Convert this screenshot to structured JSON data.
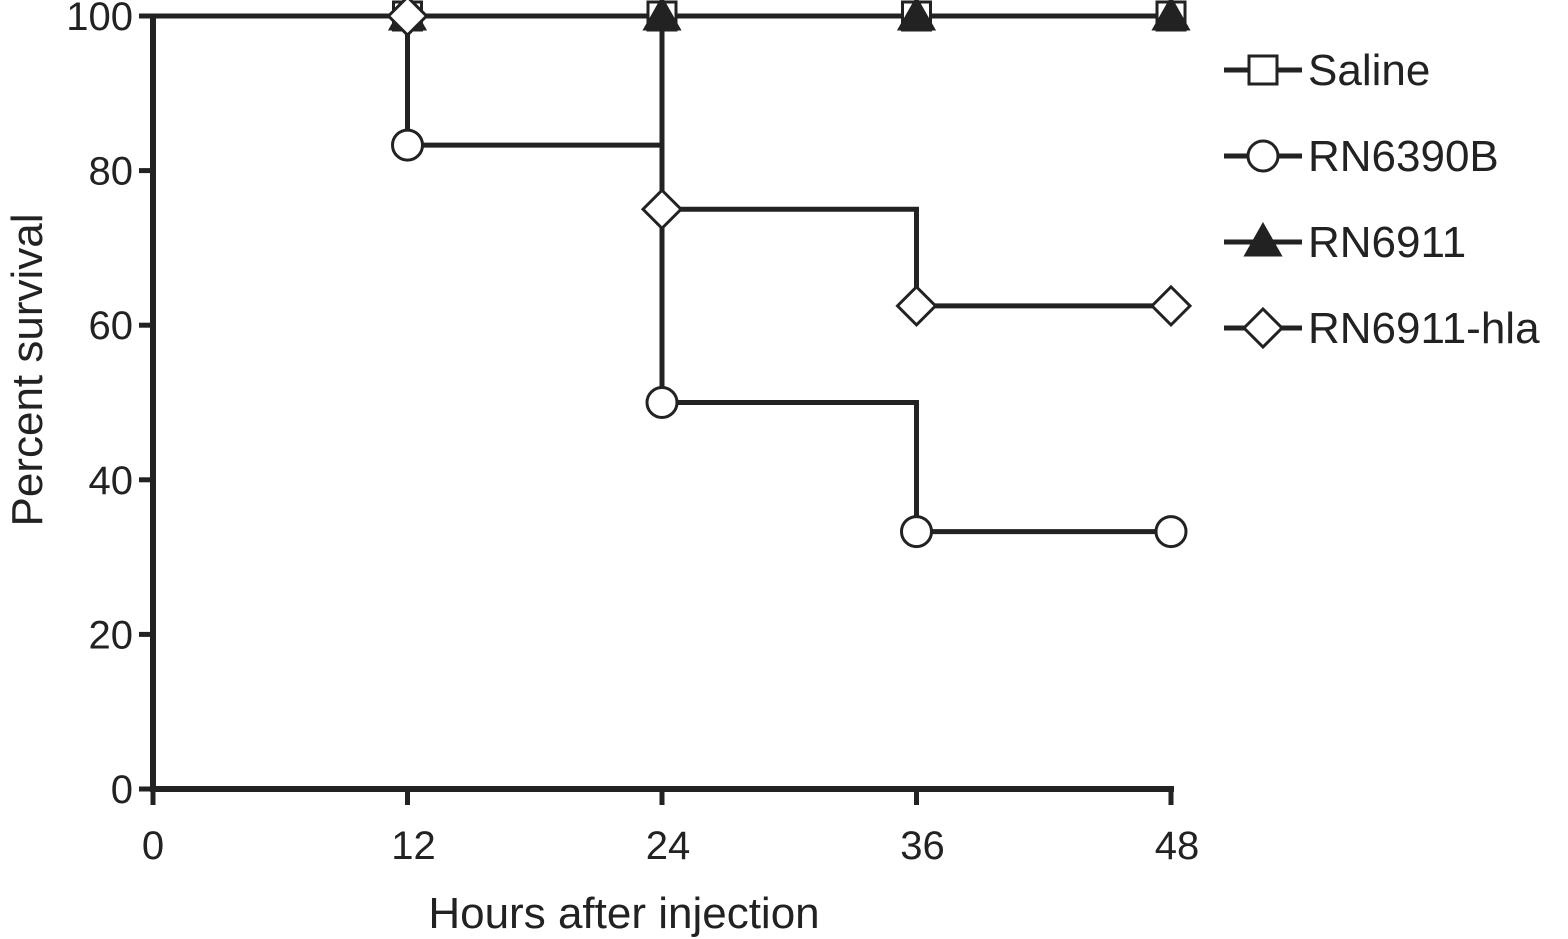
{
  "chart_data": {
    "type": "line",
    "step": true,
    "xlabel": "Hours after injection",
    "ylabel": "Percent survival",
    "xlim": [
      0,
      48
    ],
    "ylim": [
      0,
      100
    ],
    "xticks": [
      0,
      12,
      24,
      36,
      48
    ],
    "yticks": [
      0,
      20,
      40,
      60,
      80,
      100
    ],
    "grid": false,
    "legend_position": "right",
    "series": [
      {
        "name": "Saline",
        "marker": "open-square",
        "x": [
          0,
          12,
          24,
          36,
          48
        ],
        "y": [
          100,
          100,
          100,
          100,
          100
        ]
      },
      {
        "name": "RN6390B",
        "marker": "open-circle",
        "x": [
          0,
          12,
          24,
          36,
          48
        ],
        "y": [
          100,
          83.3,
          50,
          33.3,
          33.3
        ]
      },
      {
        "name": "RN6911",
        "marker": "filled-triangle",
        "x": [
          0,
          12,
          24,
          36,
          48
        ],
        "y": [
          100,
          100,
          100,
          100,
          100
        ]
      },
      {
        "name": "RN6911-hla",
        "marker": "open-diamond",
        "x": [
          0,
          12,
          24,
          36,
          48
        ],
        "y": [
          100,
          100,
          75,
          62.5,
          62.5
        ]
      }
    ],
    "colors": {
      "line": "#222222",
      "background": "#ffffff"
    }
  }
}
